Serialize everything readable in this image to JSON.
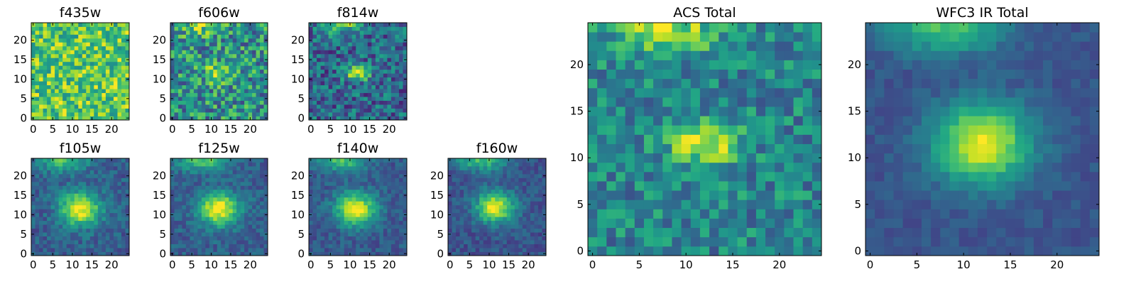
{
  "chart_data": {
    "type": "heatmap",
    "colormap": "viridis",
    "grid": false,
    "panels": [
      {
        "title": "f435w",
        "xticks": [
          0,
          5,
          10,
          15,
          20
        ],
        "yticks": [
          0,
          5,
          10,
          15,
          20
        ],
        "xlim": [
          -0.5,
          24.5
        ],
        "ylim": [
          -0.5,
          24.5
        ],
        "source": {
          "cx": 12,
          "cy": 11,
          "sx": 3.5,
          "sy": 2.5,
          "amp": 0.0
        },
        "top_source": {
          "cx": 9,
          "cy": 24,
          "sx": 6,
          "sy": 2,
          "amp": 0.0
        },
        "background": 0.74,
        "noise": 0.26,
        "seed": 11
      },
      {
        "title": "f606w",
        "xticks": [
          0,
          5,
          10,
          15,
          20
        ],
        "yticks": [
          0,
          5,
          10,
          15,
          20
        ],
        "xlim": [
          -0.5,
          24.5
        ],
        "ylim": [
          -0.5,
          24.5
        ],
        "source": {
          "cx": 12,
          "cy": 11.5,
          "sx": 2.5,
          "sy": 1.8,
          "amp": 0.35
        },
        "top_source": {
          "cx": 8,
          "cy": 24,
          "sx": 4,
          "sy": 1.8,
          "amp": 0.3
        },
        "background": 0.5,
        "noise": 0.3,
        "seed": 23
      },
      {
        "title": "f814w",
        "xticks": [
          0,
          5,
          10,
          15,
          20
        ],
        "yticks": [
          0,
          5,
          10,
          15,
          20
        ],
        "xlim": [
          -0.5,
          24.5
        ],
        "ylim": [
          -0.5,
          24.5
        ],
        "source": {
          "cx": 12,
          "cy": 11.5,
          "sx": 2.2,
          "sy": 1.3,
          "amp": 0.62
        },
        "top_source": {
          "cx": 8,
          "cy": 24,
          "sx": 4,
          "sy": 1.8,
          "amp": 0.4
        },
        "background": 0.33,
        "noise": 0.24,
        "seed": 37
      },
      {
        "title": "f105w",
        "xticks": [
          0,
          5,
          10,
          15,
          20
        ],
        "yticks": [
          0,
          5,
          10,
          15,
          20
        ],
        "xlim": [
          -0.5,
          24.5
        ],
        "ylim": [
          -0.5,
          24.5
        ],
        "source": {
          "cx": 12,
          "cy": 11.5,
          "sx": 3.6,
          "sy": 3.0,
          "amp": 0.7
        },
        "top_source": {
          "cx": 8,
          "cy": 24,
          "sx": 4.5,
          "sy": 2,
          "amp": 0.4
        },
        "background": 0.3,
        "noise": 0.12,
        "seed": 41
      },
      {
        "title": "f125w",
        "xticks": [
          0,
          5,
          10,
          15,
          20
        ],
        "yticks": [
          0,
          5,
          10,
          15,
          20
        ],
        "xlim": [
          -0.5,
          24.5
        ],
        "ylim": [
          -0.5,
          24.5
        ],
        "source": {
          "cx": 12,
          "cy": 11.5,
          "sx": 3.6,
          "sy": 3.0,
          "amp": 0.7
        },
        "top_source": {
          "cx": 8,
          "cy": 24,
          "sx": 4.5,
          "sy": 2,
          "amp": 0.42
        },
        "background": 0.3,
        "noise": 0.11,
        "seed": 53
      },
      {
        "title": "f140w",
        "xticks": [
          0,
          5,
          10,
          15,
          20
        ],
        "yticks": [
          0,
          5,
          10,
          15,
          20
        ],
        "xlim": [
          -0.5,
          24.5
        ],
        "ylim": [
          -0.5,
          24.5
        ],
        "source": {
          "cx": 11.5,
          "cy": 11.5,
          "sx": 3.6,
          "sy": 3.0,
          "amp": 0.7
        },
        "top_source": {
          "cx": 8,
          "cy": 24,
          "sx": 4.5,
          "sy": 2,
          "amp": 0.42
        },
        "background": 0.28,
        "noise": 0.1,
        "seed": 67
      },
      {
        "title": "f160w",
        "xticks": [
          0,
          5,
          10,
          15,
          20
        ],
        "yticks": [
          0,
          5,
          10,
          15,
          20
        ],
        "xlim": [
          -0.5,
          24.5
        ],
        "ylim": [
          -0.5,
          24.5
        ],
        "source": {
          "cx": 11.5,
          "cy": 12,
          "sx": 3.4,
          "sy": 2.8,
          "amp": 0.72
        },
        "top_source": {
          "cx": 8,
          "cy": 24,
          "sx": 4.5,
          "sy": 2,
          "amp": 0.42
        },
        "background": 0.26,
        "noise": 0.1,
        "seed": 79
      },
      {
        "title": "ACS Total",
        "xticks": [
          0,
          5,
          10,
          15,
          20
        ],
        "yticks": [
          0,
          5,
          10,
          15,
          20
        ],
        "xlim": [
          -0.5,
          24.5
        ],
        "ylim": [
          -0.5,
          24.5
        ],
        "source": {
          "cx": 12,
          "cy": 11.5,
          "sx": 2.6,
          "sy": 1.6,
          "amp": 0.5
        },
        "top_source": {
          "cx": 8,
          "cy": 24,
          "sx": 4,
          "sy": 2,
          "amp": 0.42
        },
        "background": 0.45,
        "noise": 0.2,
        "seed": 97
      },
      {
        "title": "WFC3 IR Total",
        "xticks": [
          0,
          5,
          10,
          15,
          20
        ],
        "yticks": [
          0,
          5,
          10,
          15,
          20
        ],
        "xlim": [
          -0.5,
          24.5
        ],
        "ylim": [
          -0.5,
          24.5
        ],
        "source": {
          "cx": 12,
          "cy": 11.5,
          "sx": 3.6,
          "sy": 3.0,
          "amp": 0.72
        },
        "top_source": {
          "cx": 8,
          "cy": 24,
          "sx": 4.5,
          "sy": 2,
          "amp": 0.45
        },
        "background": 0.26,
        "noise": 0.06,
        "seed": 113
      }
    ]
  }
}
